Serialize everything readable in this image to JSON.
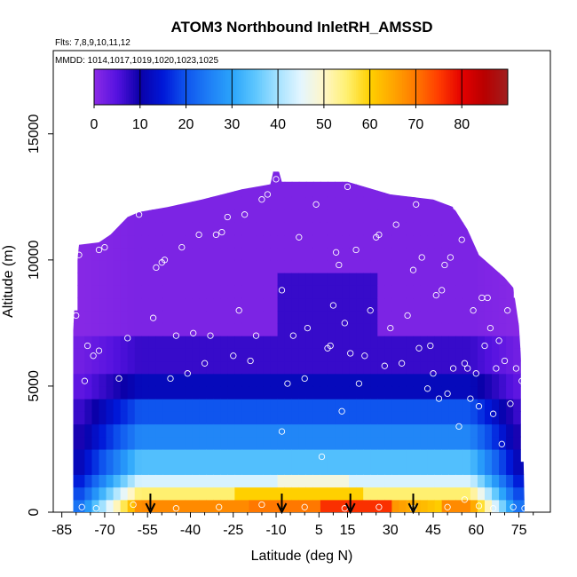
{
  "chart_data": {
    "type": "heatmap",
    "title": "ATOM3 Northbound InletRH_AMSSD",
    "subtitle_flights": "Flts: 7,8,9,10,11,12",
    "subtitle_dates": "MMDD: 1014,1017,1019,1020,1023,1025",
    "xlabel": "Latitude (deg N)",
    "ylabel": "Altitude (m)",
    "xlim": [
      -85,
      85
    ],
    "ylim": [
      0,
      17500
    ],
    "x_ticks": [
      -85,
      -70,
      -55,
      -40,
      -25,
      -10,
      5,
      15,
      30,
      45,
      60,
      75
    ],
    "x_tick_labels": [
      "-85",
      "-70",
      "-55",
      "-40",
      "-25",
      "-10",
      "5",
      "15",
      "30",
      "45",
      "60",
      "75"
    ],
    "y_ticks": [
      0,
      5000,
      10000,
      15000
    ],
    "y_tick_labels": [
      "0",
      "5000",
      "10000",
      "15000"
    ],
    "colorbar": {
      "min": 0,
      "max": 90,
      "ticks": [
        0,
        10,
        20,
        30,
        40,
        50,
        60,
        70,
        80
      ],
      "tick_labels": [
        "0",
        "10",
        "20",
        "30",
        "40",
        "50",
        "60",
        "70",
        "80"
      ],
      "placement": "top inset"
    },
    "color_stops": [
      {
        "v": 0,
        "c": "#8c2be6"
      },
      {
        "v": 5,
        "c": "#5512e0"
      },
      {
        "v": 10,
        "c": "#0a00a8"
      },
      {
        "v": 15,
        "c": "#0018d8"
      },
      {
        "v": 20,
        "c": "#0f55ee"
      },
      {
        "v": 25,
        "c": "#1e7ef6"
      },
      {
        "v": 30,
        "c": "#2ba4fb"
      },
      {
        "v": 35,
        "c": "#5cc6fe"
      },
      {
        "v": 40,
        "c": "#a5e2ff"
      },
      {
        "v": 45,
        "c": "#e4f6ff"
      },
      {
        "v": 50,
        "c": "#fff6c8"
      },
      {
        "v": 55,
        "c": "#fff070"
      },
      {
        "v": 60,
        "c": "#ffd000"
      },
      {
        "v": 65,
        "c": "#ffa600"
      },
      {
        "v": 70,
        "c": "#ff7800"
      },
      {
        "v": 75,
        "c": "#ff3c00"
      },
      {
        "v": 80,
        "c": "#e40000"
      },
      {
        "v": 85,
        "c": "#b80000"
      },
      {
        "v": 90,
        "c": "#a01e1e"
      }
    ],
    "arrow_latitudes": [
      -54,
      -8,
      16,
      38
    ],
    "sample_points": [
      {
        "lat": -80,
        "alt": 7800
      },
      {
        "lat": -76,
        "alt": 6600
      },
      {
        "lat": -74,
        "alt": 6200
      },
      {
        "lat": -72,
        "alt": 6400
      },
      {
        "lat": -77,
        "alt": 5200
      },
      {
        "lat": -79,
        "alt": 10200
      },
      {
        "lat": -72,
        "alt": 10400
      },
      {
        "lat": -70,
        "alt": 10500
      },
      {
        "lat": -65,
        "alt": 5300
      },
      {
        "lat": -62,
        "alt": 6900
      },
      {
        "lat": -58,
        "alt": 11800
      },
      {
        "lat": -53,
        "alt": 7700
      },
      {
        "lat": -52,
        "alt": 9700
      },
      {
        "lat": -50,
        "alt": 9900
      },
      {
        "lat": -49,
        "alt": 10000
      },
      {
        "lat": -47,
        "alt": 5300
      },
      {
        "lat": -45,
        "alt": 7000
      },
      {
        "lat": -43,
        "alt": 10500
      },
      {
        "lat": -41,
        "alt": 5500
      },
      {
        "lat": -39,
        "alt": 7100
      },
      {
        "lat": -37,
        "alt": 11000
      },
      {
        "lat": -35,
        "alt": 5900
      },
      {
        "lat": -33,
        "alt": 7000
      },
      {
        "lat": -31,
        "alt": 11000
      },
      {
        "lat": -29,
        "alt": 11100
      },
      {
        "lat": -27,
        "alt": 11700
      },
      {
        "lat": -25,
        "alt": 6200
      },
      {
        "lat": -23,
        "alt": 8000
      },
      {
        "lat": -21,
        "alt": 11800
      },
      {
        "lat": -19,
        "alt": 6000
      },
      {
        "lat": -17,
        "alt": 7000
      },
      {
        "lat": -15,
        "alt": 12400
      },
      {
        "lat": -13,
        "alt": 12600
      },
      {
        "lat": -10,
        "alt": 13200
      },
      {
        "lat": -8,
        "alt": 8800
      },
      {
        "lat": -6,
        "alt": 5100
      },
      {
        "lat": -4,
        "alt": 7000
      },
      {
        "lat": -2,
        "alt": 10900
      },
      {
        "lat": 0,
        "alt": 5300
      },
      {
        "lat": 1,
        "alt": 7300
      },
      {
        "lat": 4,
        "alt": 12200
      },
      {
        "lat": 6,
        "alt": 2200
      },
      {
        "lat": 8,
        "alt": 6500
      },
      {
        "lat": 9,
        "alt": 6600
      },
      {
        "lat": 10,
        "alt": 8200
      },
      {
        "lat": 11,
        "alt": 10300
      },
      {
        "lat": 12,
        "alt": 9800
      },
      {
        "lat": 13,
        "alt": 4000
      },
      {
        "lat": 14,
        "alt": 7500
      },
      {
        "lat": 15,
        "alt": 12900
      },
      {
        "lat": 16,
        "alt": 6300
      },
      {
        "lat": 18,
        "alt": 10400
      },
      {
        "lat": 19,
        "alt": 5100
      },
      {
        "lat": 21,
        "alt": 6200
      },
      {
        "lat": 23,
        "alt": 8000
      },
      {
        "lat": 25,
        "alt": 10900
      },
      {
        "lat": 26,
        "alt": 11000
      },
      {
        "lat": 28,
        "alt": 5800
      },
      {
        "lat": 30,
        "alt": 7300
      },
      {
        "lat": 32,
        "alt": 11400
      },
      {
        "lat": 34,
        "alt": 5900
      },
      {
        "lat": 36,
        "alt": 7800
      },
      {
        "lat": 38,
        "alt": 9600
      },
      {
        "lat": 39,
        "alt": 12200
      },
      {
        "lat": 40,
        "alt": 6500
      },
      {
        "lat": 41,
        "alt": 10100
      },
      {
        "lat": 43,
        "alt": 4900
      },
      {
        "lat": 44,
        "alt": 6600
      },
      {
        "lat": 45,
        "alt": 5500
      },
      {
        "lat": 46,
        "alt": 8600
      },
      {
        "lat": 47,
        "alt": 4500
      },
      {
        "lat": 48,
        "alt": 8800
      },
      {
        "lat": 49,
        "alt": 9800
      },
      {
        "lat": 50,
        "alt": 4700
      },
      {
        "lat": 51,
        "alt": 10100
      },
      {
        "lat": 52,
        "alt": 5700
      },
      {
        "lat": 53,
        "alt": 12100
      },
      {
        "lat": 54,
        "alt": 3400
      },
      {
        "lat": 55,
        "alt": 10800
      },
      {
        "lat": 56,
        "alt": 5900
      },
      {
        "lat": 57,
        "alt": 5700
      },
      {
        "lat": 58,
        "alt": 4500
      },
      {
        "lat": 59,
        "alt": 8000
      },
      {
        "lat": 60,
        "alt": 5500
      },
      {
        "lat": 61,
        "alt": 4200
      },
      {
        "lat": 62,
        "alt": 8500
      },
      {
        "lat": 63,
        "alt": 6600
      },
      {
        "lat": 64,
        "alt": 8500
      },
      {
        "lat": 65,
        "alt": 7300
      },
      {
        "lat": 66,
        "alt": 3900
      },
      {
        "lat": 67,
        "alt": 5700
      },
      {
        "lat": 68,
        "alt": 6800
      },
      {
        "lat": 69,
        "alt": 2700
      },
      {
        "lat": 70,
        "alt": 6000
      },
      {
        "lat": 71,
        "alt": 8000
      },
      {
        "lat": 72,
        "alt": 4300
      },
      {
        "lat": 74,
        "alt": 5700
      },
      {
        "lat": 75,
        "alt": 8800
      },
      {
        "lat": 76,
        "alt": 5200
      },
      {
        "lat": -78,
        "alt": 200
      },
      {
        "lat": -73,
        "alt": 150
      },
      {
        "lat": -60,
        "alt": 300
      },
      {
        "lat": -45,
        "alt": 150
      },
      {
        "lat": -30,
        "alt": 200
      },
      {
        "lat": -15,
        "alt": 300
      },
      {
        "lat": -8,
        "alt": 3200
      },
      {
        "lat": 0,
        "alt": 200
      },
      {
        "lat": 14,
        "alt": 150
      },
      {
        "lat": 26,
        "alt": 200
      },
      {
        "lat": 38,
        "alt": 150
      },
      {
        "lat": 50,
        "alt": 200
      },
      {
        "lat": 56,
        "alt": 500
      },
      {
        "lat": 61,
        "alt": 250
      },
      {
        "lat": 66,
        "alt": 150
      },
      {
        "lat": 73,
        "alt": 200
      },
      {
        "lat": 77,
        "alt": 150
      }
    ]
  }
}
